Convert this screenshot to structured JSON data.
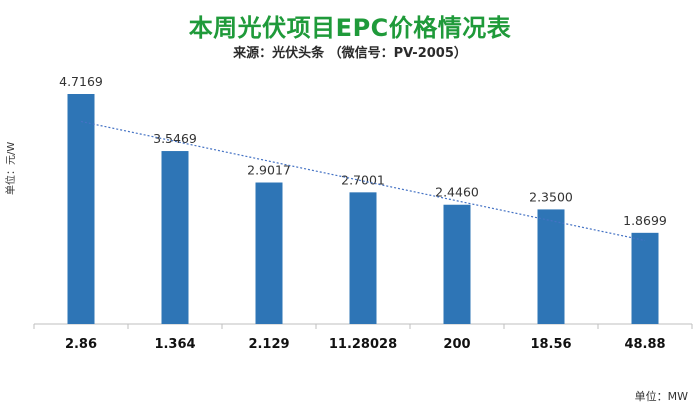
{
  "chart_data": {
    "type": "bar",
    "title": "本周光伏项目EPC价格情况表",
    "subtitle": "来源：光伏头条 （微信号：PV-2005）",
    "ylabel": "单位：元/W",
    "unit_note": "单位：MW",
    "categories": [
      "2.86",
      "1.364",
      "2.129",
      "11.28028",
      "200",
      "18.56",
      "48.88"
    ],
    "values": [
      4.7169,
      3.5469,
      2.9017,
      2.7001,
      2.446,
      2.35,
      1.8699
    ],
    "value_labels": [
      "4.7169",
      "3.5469",
      "2.9017",
      "2.7001",
      "2.4460",
      "2.3500",
      "1.8699"
    ],
    "ylim": [
      0,
      4.7169
    ],
    "trendline": "linear",
    "grid": false,
    "colors": {
      "bar": "#2e75b6",
      "trend": "#4472c4",
      "title": "#1f9a3a"
    }
  }
}
